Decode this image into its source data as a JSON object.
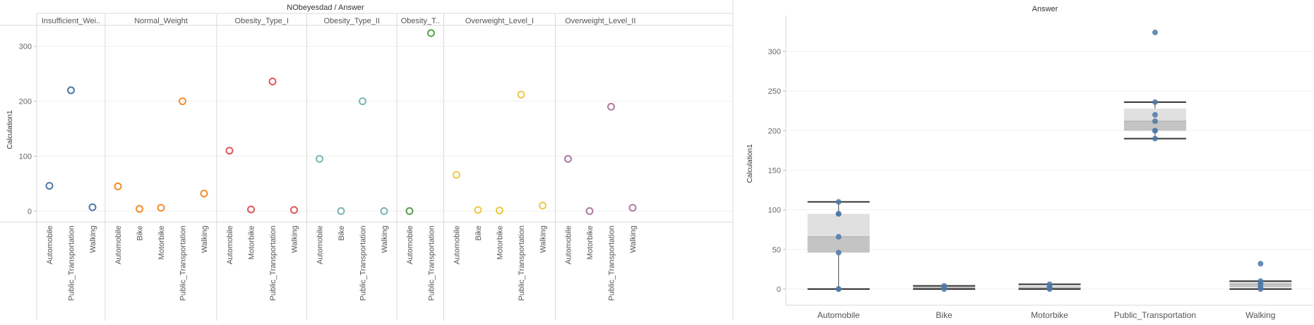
{
  "chart_data": [
    {
      "type": "scatter",
      "title": "NObeyesdad / Answer",
      "ylabel": "Calculation1",
      "ylim": [
        -20,
        360
      ],
      "yticks": [
        0,
        100,
        200,
        300
      ],
      "grid": true,
      "panels": [
        {
          "name": "Insufficient_Wei..",
          "color": "#4e79a7",
          "categories": [
            "Automobile",
            "Public_Transportation",
            "Walking"
          ],
          "values": [
            46,
            220,
            7
          ]
        },
        {
          "name": "Normal_Weight",
          "color": "#f28e2b",
          "categories": [
            "Automobile",
            "Bike",
            "Motorbike",
            "Public_Transportation",
            "Walking"
          ],
          "values": [
            45,
            4,
            6,
            200,
            32
          ]
        },
        {
          "name": "Obesity_Type_I",
          "color": "#e15759",
          "categories": [
            "Automobile",
            "Motorbike",
            "Public_Transportation",
            "Walking"
          ],
          "values": [
            110,
            3,
            236,
            2
          ]
        },
        {
          "name": "Obesity_Type_II",
          "color": "#76b7b2",
          "categories": [
            "Automobile",
            "Bike",
            "Public_Transportation",
            "Walking"
          ],
          "values": [
            95,
            0,
            200,
            0
          ]
        },
        {
          "name": "Obesity_T..",
          "color": "#59a14f",
          "categories": [
            "Automobile",
            "Public_Transportation"
          ],
          "values": [
            0,
            324
          ]
        },
        {
          "name": "Overweight_Level_I",
          "color": "#edc948",
          "categories": [
            "Automobile",
            "Bike",
            "Motorbike",
            "Public_Transportation",
            "Walking"
          ],
          "values": [
            66,
            2,
            1,
            212,
            10
          ]
        },
        {
          "name": "Overweight_Level_II",
          "color": "#b07aa1",
          "categories": [
            "Automobile",
            "Motorbike",
            "Public_Transportation",
            "Walking"
          ],
          "values": [
            95,
            0,
            190,
            6
          ]
        }
      ]
    },
    {
      "type": "box",
      "title": "Answer",
      "ylabel": "Calculation1",
      "ylim": [
        -10,
        330
      ],
      "yticks": [
        0,
        50,
        100,
        150,
        200,
        250,
        300
      ],
      "grid": true,
      "point_color": "#4e79a7",
      "categories": [
        "Automobile",
        "Bike",
        "Motorbike",
        "Public_Transportation",
        "Walking"
      ],
      "boxes": [
        {
          "points": [
            46,
            110,
            0,
            95,
            0,
            66,
            95
          ],
          "min": 0,
          "q1": 46,
          "median": 66,
          "q3": 95,
          "max": 110
        },
        {
          "points": [
            4,
            0,
            2
          ],
          "min": 0,
          "q1": 1,
          "median": 2,
          "q3": 3,
          "max": 4
        },
        {
          "points": [
            6,
            3,
            0,
            1
          ],
          "min": 0,
          "q1": 1,
          "median": 2,
          "q3": 4.5,
          "max": 6
        },
        {
          "points": [
            220,
            200,
            236,
            200,
            324,
            212,
            190
          ],
          "min": 190,
          "q1": 200,
          "median": 212,
          "q3": 228,
          "max": 236
        },
        {
          "points": [
            7,
            32,
            2,
            0,
            10,
            6
          ],
          "min": 0,
          "q1": 2,
          "median": 6.5,
          "q3": 9,
          "max": 10
        }
      ]
    }
  ]
}
